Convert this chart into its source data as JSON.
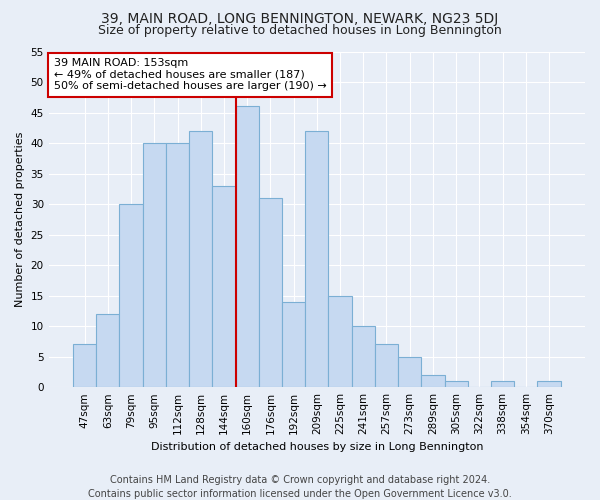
{
  "title": "39, MAIN ROAD, LONG BENNINGTON, NEWARK, NG23 5DJ",
  "subtitle": "Size of property relative to detached houses in Long Bennington",
  "xlabel": "Distribution of detached houses by size in Long Bennington",
  "ylabel": "Number of detached properties",
  "footer_line1": "Contains HM Land Registry data © Crown copyright and database right 2024.",
  "footer_line2": "Contains public sector information licensed under the Open Government Licence v3.0.",
  "categories": [
    "47sqm",
    "63sqm",
    "79sqm",
    "95sqm",
    "112sqm",
    "128sqm",
    "144sqm",
    "160sqm",
    "176sqm",
    "192sqm",
    "209sqm",
    "225sqm",
    "241sqm",
    "257sqm",
    "273sqm",
    "289sqm",
    "305sqm",
    "322sqm",
    "338sqm",
    "354sqm",
    "370sqm"
  ],
  "values": [
    7,
    12,
    30,
    40,
    40,
    42,
    33,
    46,
    31,
    14,
    42,
    15,
    10,
    7,
    5,
    2,
    1,
    0,
    1,
    0,
    1
  ],
  "bar_color": "#c6d9f1",
  "bar_edge_color": "#7bafd4",
  "bar_width": 1.0,
  "vline_x_index": 6,
  "vline_color": "#cc0000",
  "annotation_line1": "39 MAIN ROAD: 153sqm",
  "annotation_line2": "← 49% of detached houses are smaller (187)",
  "annotation_line3": "50% of semi-detached houses are larger (190) →",
  "annotation_box_color": "#cc0000",
  "annotation_box_bg": "#ffffff",
  "ylim": [
    0,
    55
  ],
  "yticks": [
    0,
    5,
    10,
    15,
    20,
    25,
    30,
    35,
    40,
    45,
    50,
    55
  ],
  "title_fontsize": 10,
  "subtitle_fontsize": 9,
  "axis_label_fontsize": 8,
  "tick_fontsize": 7.5,
  "annotation_fontsize": 8,
  "footer_fontsize": 7,
  "bg_color": "#e8eef7",
  "plot_bg_color": "#e8eef7",
  "grid_color": "#ffffff",
  "title_color": "#222222"
}
